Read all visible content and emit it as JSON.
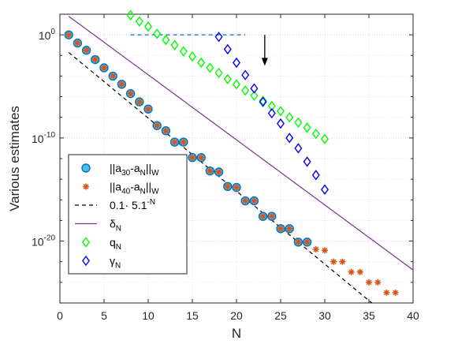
{
  "chart_data": {
    "type": "scatter",
    "xlabel": "N",
    "ylabel": "Various estimates",
    "xlim": [
      0,
      40
    ],
    "ylim_log10": [
      -26,
      2
    ],
    "yscale": "log",
    "grid": true,
    "x_ticks": [
      0,
      5,
      10,
      15,
      20,
      25,
      30,
      35,
      40
    ],
    "x_tick_labels": [
      "0",
      "5",
      "10",
      "15",
      "20",
      "25",
      "30",
      "35",
      "40"
    ],
    "y_ticks_log10": [
      0,
      -10,
      -20
    ],
    "y_tick_labels": [
      {
        "base": "10",
        "exp": "0"
      },
      {
        "base": "10",
        "exp": "-10"
      },
      {
        "base": "10",
        "exp": "-20"
      }
    ],
    "legend_position": "bottom-left",
    "legend": [
      {
        "key": "a30",
        "parts": [
          "||a",
          "30",
          "-a",
          "N",
          "||",
          "W"
        ]
      },
      {
        "key": "a40",
        "parts": [
          "||a",
          "40",
          "-a",
          "N",
          "||",
          "W"
        ]
      },
      {
        "key": "ref",
        "parts": [
          "0.1· 5.1",
          "-N",
          "",
          "",
          "",
          ""
        ]
      },
      {
        "key": "delta",
        "parts": [
          "δ",
          "N",
          "",
          "",
          "",
          ""
        ]
      },
      {
        "key": "q",
        "parts": [
          "q",
          "N",
          "",
          "",
          "",
          ""
        ]
      },
      {
        "key": "gamma",
        "parts": [
          "γ",
          "N",
          "",
          "",
          "",
          ""
        ]
      }
    ],
    "series": [
      {
        "key": "a30",
        "marker": "circle",
        "color": "#0072bd",
        "fill": "#4dbeee",
        "x": [
          1,
          2,
          3,
          4,
          5,
          6,
          7,
          8,
          9,
          10,
          11,
          12,
          13,
          14,
          15,
          16,
          17,
          18,
          19,
          20,
          21,
          22,
          23,
          24,
          25,
          26,
          27,
          28
        ],
        "log10y": [
          0.0,
          -0.8,
          -1.5,
          -2.4,
          -3.2,
          -4.0,
          -4.8,
          -5.7,
          -6.5,
          -7.2,
          -8.8,
          -9.3,
          -10.4,
          -10.4,
          -11.9,
          -11.9,
          -13.2,
          -13.3,
          -14.7,
          -14.8,
          -16.1,
          -16.1,
          -17.6,
          -17.6,
          -18.8,
          -18.8,
          -20.1,
          -20.1
        ]
      },
      {
        "key": "a40",
        "marker": "asterisk",
        "color": "#d95319",
        "x": [
          1,
          2,
          3,
          4,
          5,
          6,
          7,
          8,
          9,
          10,
          11,
          12,
          13,
          14,
          15,
          16,
          17,
          18,
          19,
          20,
          21,
          22,
          23,
          24,
          25,
          26,
          27,
          28,
          29,
          30,
          31,
          32,
          33,
          34,
          35,
          36,
          37,
          38
        ],
        "log10y": [
          0.0,
          -0.8,
          -1.5,
          -2.4,
          -3.2,
          -4.0,
          -4.8,
          -5.7,
          -6.5,
          -7.2,
          -8.8,
          -9.3,
          -10.4,
          -10.4,
          -11.9,
          -11.9,
          -13.2,
          -13.3,
          -14.7,
          -14.8,
          -16.1,
          -16.1,
          -17.6,
          -17.6,
          -18.8,
          -18.8,
          -20.1,
          -20.1,
          -20.8,
          -20.9,
          -22.0,
          -22.0,
          -23.0,
          -23.0,
          -24.0,
          -24.0,
          -25.0,
          -25.0
        ]
      },
      {
        "key": "ref",
        "marker": "none",
        "line": "dashed",
        "color": "#000000",
        "x": [
          1,
          40
        ],
        "log10y": [
          -1.708,
          -29.305
        ]
      },
      {
        "key": "refmark",
        "marker": "none",
        "line": "dashed",
        "color": "#0072bd",
        "x": [
          8,
          21
        ],
        "log10y": [
          0.0,
          0.0
        ]
      },
      {
        "key": "delta",
        "marker": "none",
        "line": "solid",
        "color": "#7e2f8e",
        "x": [
          1,
          40
        ],
        "log10y": [
          1.8,
          -22.8
        ]
      },
      {
        "key": "q",
        "marker": "diamond",
        "color": "#00ff00",
        "x": [
          8,
          9,
          10,
          11,
          12,
          13,
          14,
          15,
          16,
          17,
          18,
          19,
          20,
          21,
          22,
          23,
          24,
          25,
          26,
          27,
          28,
          29,
          30
        ],
        "log10y": [
          1.9,
          1.3,
          0.8,
          0.1,
          -0.5,
          -1.0,
          -1.6,
          -2.1,
          -2.7,
          -3.2,
          -3.7,
          -4.3,
          -4.8,
          -5.4,
          -5.9,
          -6.4,
          -6.9,
          -7.4,
          -8.0,
          -8.5,
          -9.0,
          -9.6,
          -10.1
        ]
      },
      {
        "key": "gamma",
        "marker": "diamond",
        "color": "#0000ff",
        "x": [
          18,
          19,
          20,
          21,
          22,
          23,
          24,
          25,
          26,
          27,
          28,
          29,
          30
        ],
        "log10y": [
          -0.2,
          -1.4,
          -2.7,
          -3.9,
          -5.2,
          -6.5,
          -7.6,
          -8.6,
          -10.0,
          -11.0,
          -12.3,
          -13.6,
          -15.0
        ]
      }
    ],
    "annotation": {
      "type": "arrow",
      "from": [
        23.2,
        0.0
      ],
      "to": [
        23.2,
        -3.0
      ]
    }
  }
}
